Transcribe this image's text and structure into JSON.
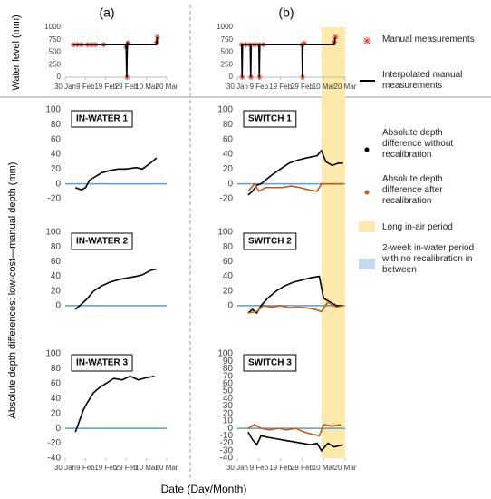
{
  "panel_labels": [
    "(a)",
    "(b)"
  ],
  "y_label_top": "Water level (mm)",
  "y_label_bottom": "Absolute depth differences: low-cost—manual depth (mm)",
  "x_label": "Date (Day/Month)",
  "legend_only": {
    "name": "2-week in-water period with no recalibration in between",
    "color": "#c6d9f0"
  },
  "chart_data": [
    {
      "type": "line",
      "xlim": [
        0,
        50
      ],
      "ylim": [
        0,
        1000
      ],
      "yticks": [
        0,
        250,
        500,
        750,
        1000
      ],
      "xticks": [
        {
          "value": 0,
          "label": "30 Jan"
        },
        {
          "value": 10,
          "label": "9 Feb"
        },
        {
          "value": 20,
          "label": "19 Feb"
        },
        {
          "value": 30,
          "label": "29 Feb"
        },
        {
          "value": 40,
          "label": "10 Mar"
        },
        {
          "value": 50,
          "label": "20 Mar"
        }
      ],
      "series": [
        {
          "marker": "asterisk",
          "color": "#e8473b",
          "x": [
            4,
            6,
            8,
            11,
            13,
            15,
            19,
            30,
            30.5,
            31,
            45,
            45.5
          ],
          "values": [
            650,
            650,
            650,
            650,
            650,
            650,
            650,
            600,
            0,
            680,
            700,
            800
          ]
        },
        {
          "color": "#000000",
          "x": [
            4,
            30,
            30.3,
            30.6,
            31,
            45,
            45.3
          ],
          "values": [
            650,
            650,
            0,
            680,
            650,
            650,
            800
          ]
        }
      ]
    },
    {
      "type": "line",
      "xlim": [
        0,
        50
      ],
      "ylim": [
        0,
        1000
      ],
      "yticks": [
        0,
        250,
        500,
        750,
        1000
      ],
      "xticks": [
        {
          "value": 0,
          "label": "30 Jan"
        },
        {
          "value": 10,
          "label": "9 Feb"
        },
        {
          "value": 20,
          "label": "19 Feb"
        },
        {
          "value": 30,
          "label": "29 Feb"
        },
        {
          "value": 40,
          "label": "10 Mar"
        },
        {
          "value": 50,
          "label": "20 Mar"
        }
      ],
      "series": [
        {
          "name": "Manual measurements",
          "marker": "asterisk",
          "color": "#e8473b",
          "x": [
            2,
            2.3,
            4,
            6,
            6.3,
            8,
            10,
            10.3,
            12,
            30,
            30.3,
            31,
            45,
            45.5
          ],
          "values": [
            650,
            0,
            650,
            650,
            0,
            650,
            650,
            0,
            650,
            650,
            0,
            680,
            700,
            800
          ]
        },
        {
          "name": "Interpolated manual measurements",
          "color": "#000000",
          "x": [
            2,
            2.2,
            2.4,
            6,
            6.2,
            6.4,
            10,
            10.2,
            10.4,
            30,
            30.2,
            30.4,
            45,
            45.3
          ],
          "values": [
            650,
            0,
            650,
            650,
            0,
            650,
            650,
            0,
            650,
            650,
            0,
            650,
            650,
            800
          ]
        }
      ]
    },
    {
      "type": "line",
      "title": "IN-WATER 1",
      "xlim": [
        0,
        50
      ],
      "ylim": [
        -20,
        100
      ],
      "yticks": [
        -20,
        0,
        20,
        40,
        60,
        80,
        100
      ],
      "reference_line": 0,
      "reference_color": "#5b9bd5",
      "series": [
        {
          "color": "#000000",
          "x": [
            5,
            8,
            10,
            12,
            15,
            18,
            22,
            26,
            30,
            35,
            38,
            42,
            45
          ],
          "values": [
            -5,
            -8,
            -5,
            5,
            10,
            15,
            18,
            20,
            20,
            22,
            20,
            28,
            35
          ]
        }
      ]
    },
    {
      "type": "line",
      "title": "SWITCH 1",
      "xlim": [
        0,
        50
      ],
      "ylim": [
        -20,
        100
      ],
      "yticks": [
        -20,
        0,
        20,
        40,
        60,
        80,
        100
      ],
      "reference_line": 0,
      "reference_color": "#5b9bd5",
      "spans": [
        {
          "name": "Long in-air period",
          "x": [
            39,
            50
          ],
          "color": "#fde9a9"
        }
      ],
      "series": [
        {
          "name": "Absolute depth difference without recalibration",
          "color": "#000000",
          "x": [
            5,
            7,
            9,
            11,
            13,
            16,
            20,
            24,
            28,
            32,
            37,
            39,
            41,
            44,
            47,
            49
          ],
          "values": [
            -15,
            -10,
            -2,
            0,
            5,
            12,
            20,
            28,
            32,
            35,
            38,
            45,
            30,
            25,
            28,
            28
          ]
        },
        {
          "name": "Absolute depth difference after recalibration",
          "color": "#c55a11",
          "x": [
            5,
            8,
            10,
            13,
            17,
            21,
            25,
            29,
            33,
            37,
            39,
            44,
            49
          ],
          "values": [
            -10,
            0,
            -10,
            -5,
            -5,
            -5,
            -3,
            -5,
            -8,
            -10,
            0,
            0,
            0
          ]
        }
      ]
    },
    {
      "type": "line",
      "title": "IN-WATER 2",
      "xlim": [
        0,
        50
      ],
      "ylim": [
        -10,
        100
      ],
      "yticks": [
        0,
        20,
        40,
        60,
        80,
        100
      ],
      "reference_line": 0,
      "reference_color": "#5b9bd5",
      "series": [
        {
          "color": "#000000",
          "x": [
            5,
            8,
            11,
            14,
            18,
            22,
            27,
            31,
            35,
            38,
            42,
            45
          ],
          "values": [
            -5,
            2,
            10,
            20,
            27,
            32,
            36,
            38,
            40,
            42,
            48,
            50
          ]
        }
      ]
    },
    {
      "type": "line",
      "title": "SWITCH 2",
      "xlim": [
        0,
        50
      ],
      "ylim": [
        -10,
        100
      ],
      "yticks": [
        0,
        20,
        40,
        60,
        80,
        100
      ],
      "reference_line": 0,
      "reference_color": "#5b9bd5",
      "series": [
        {
          "color": "#000000",
          "x": [
            5,
            7,
            9,
            11,
            14,
            18,
            22,
            26,
            30,
            34,
            38,
            40,
            43,
            46,
            49
          ],
          "values": [
            -10,
            -5,
            -10,
            0,
            10,
            20,
            27,
            32,
            35,
            38,
            40,
            10,
            5,
            0,
            0
          ]
        },
        {
          "color": "#c55a11",
          "x": [
            5,
            9,
            12,
            16,
            20,
            24,
            28,
            32,
            36,
            39,
            42,
            46,
            49
          ],
          "values": [
            -10,
            -8,
            0,
            -2,
            0,
            -3,
            -2,
            -3,
            -5,
            -8,
            5,
            -2,
            0
          ]
        }
      ]
    },
    {
      "type": "line",
      "title": "IN-WATER 3",
      "xlim": [
        0,
        50
      ],
      "ylim": [
        -40,
        100
      ],
      "yticks": [
        -40,
        -20,
        0,
        20,
        40,
        60,
        80,
        100
      ],
      "reference_line": 0,
      "reference_color": "#5b9bd5",
      "xticks": [
        {
          "value": 0,
          "label": "30 Jan"
        },
        {
          "value": 10,
          "label": "9 Feb"
        },
        {
          "value": 20,
          "label": "19 Feb"
        },
        {
          "value": 30,
          "label": "29 Feb"
        },
        {
          "value": 40,
          "label": "10 Mar"
        },
        {
          "value": 50,
          "label": "20 Mar"
        }
      ],
      "series": [
        {
          "color": "#000000",
          "x": [
            5,
            7,
            9,
            11,
            14,
            17,
            20,
            24,
            28,
            32,
            36,
            40,
            44
          ],
          "values": [
            -5,
            10,
            25,
            35,
            48,
            55,
            60,
            67,
            65,
            70,
            65,
            68,
            70
          ]
        }
      ]
    },
    {
      "type": "line",
      "title": "SWITCH 3",
      "xlim": [
        0,
        50
      ],
      "ylim": [
        -40,
        100
      ],
      "yticks": [
        -40,
        -30,
        -20,
        -10,
        0,
        10,
        20,
        30,
        40,
        50,
        60,
        70,
        80,
        90,
        100
      ],
      "reference_line": 0,
      "reference_color": "#5b9bd5",
      "xticks": [
        {
          "value": 0,
          "label": "30 Jan"
        },
        {
          "value": 10,
          "label": "9 Feb"
        },
        {
          "value": 20,
          "label": "19 Feb"
        },
        {
          "value": 30,
          "label": "29 Feb"
        },
        {
          "value": 40,
          "label": "10 Mar"
        },
        {
          "value": 50,
          "label": "20 Mar"
        }
      ],
      "series": [
        {
          "color": "#000000",
          "x": [
            5,
            7,
            9,
            11,
            14,
            18,
            22,
            26,
            30,
            34,
            37,
            39,
            42,
            45,
            49
          ],
          "values": [
            -5,
            -15,
            -22,
            -10,
            -12,
            -14,
            -16,
            -18,
            -20,
            -22,
            -20,
            -30,
            -20,
            -25,
            -22
          ]
        },
        {
          "color": "#c55a11",
          "x": [
            5,
            8,
            11,
            15,
            19,
            23,
            27,
            31,
            35,
            38,
            40,
            44,
            48
          ],
          "values": [
            0,
            5,
            0,
            -2,
            0,
            -2,
            0,
            -5,
            -8,
            -10,
            5,
            3,
            5
          ]
        }
      ]
    }
  ]
}
